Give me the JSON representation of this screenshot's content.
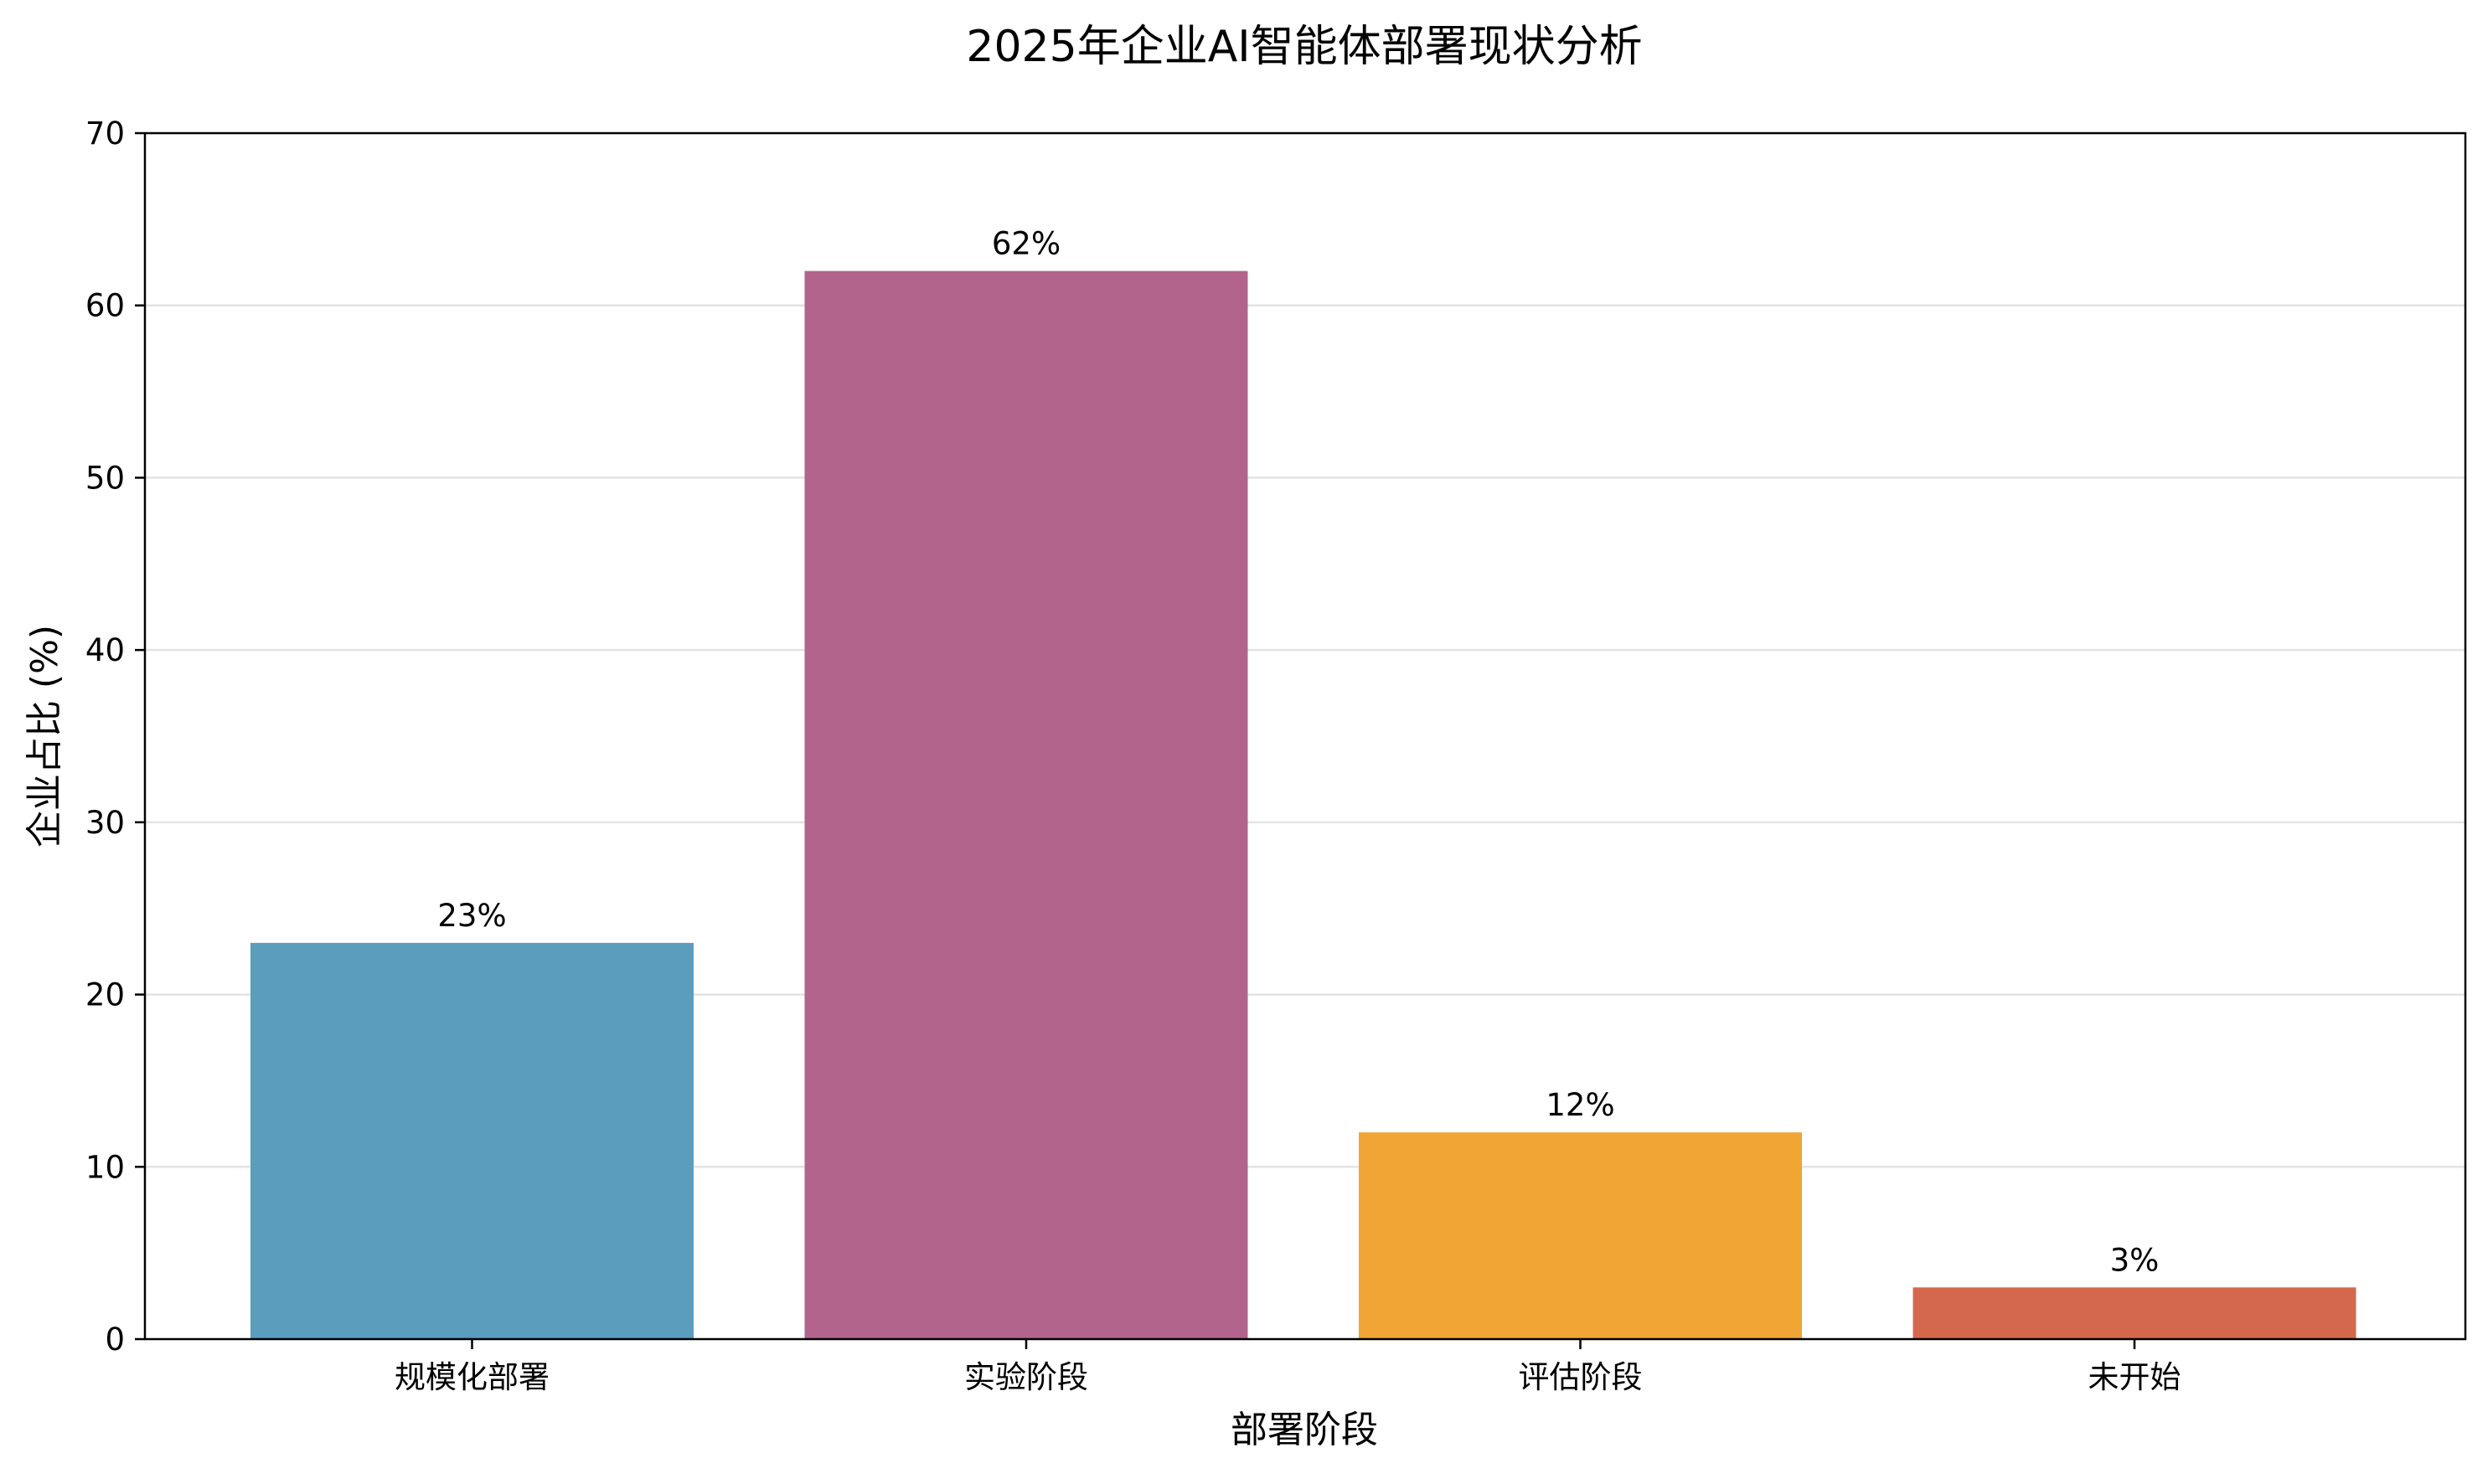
{
  "chart_data": {
    "type": "bar",
    "title": "2025年企业AI智能体部署现状分析",
    "xlabel": "部署阶段",
    "ylabel": "企业占比 (%)",
    "categories": [
      "规模化部署",
      "实验阶段",
      "评估阶段",
      "未开始"
    ],
    "values": [
      23,
      62,
      12,
      3
    ],
    "data_labels": [
      "23%",
      "62%",
      "12%",
      "3%"
    ],
    "colors": [
      "#5A9DBD",
      "#B3648C",
      "#F0A535",
      "#D4684D"
    ],
    "ylim": [
      0,
      70
    ],
    "yticks": [
      0,
      10,
      20,
      30,
      40,
      50,
      60,
      70
    ],
    "grid": "horizontal",
    "legend": "none"
  }
}
